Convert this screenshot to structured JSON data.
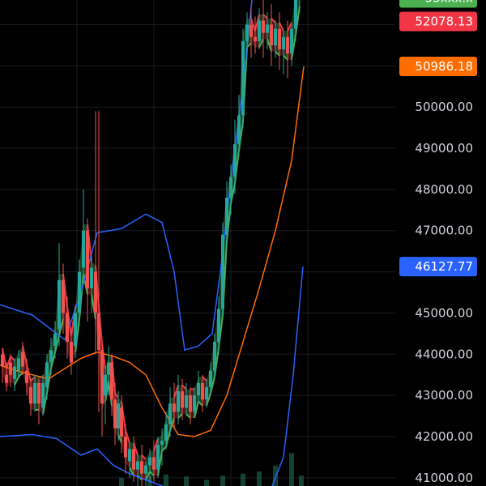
{
  "chart_data": {
    "type": "candlestick",
    "ylim": [
      40800,
      52600
    ],
    "y_ticks": [
      "50000.00",
      "49000.00",
      "48000.00",
      "47000.00",
      "45000.00",
      "44000.00",
      "43000.00",
      "42000.00",
      "41000.00"
    ],
    "y_tick_values": [
      50000,
      49000,
      48000,
      47000,
      45000,
      44000,
      43000,
      42000,
      41000
    ],
    "price_labels": [
      {
        "text": "53xxx.x",
        "value": 52650,
        "color": "#4caf50"
      },
      {
        "text": "52078.13",
        "value": 52078.13,
        "color": "#f23645"
      },
      {
        "text": "50986.18",
        "value": 50986.18,
        "color": "#ff6d00"
      },
      {
        "text": "46127.77",
        "value": 46127.77,
        "color": "#2962ff"
      }
    ],
    "colors": {
      "up": "#26a69a",
      "down": "#ef5350",
      "trail_up": "#4caf50",
      "trail_down": "#f23645",
      "ma": "#ff6d00",
      "band": "#2962ff",
      "grid": "#1a1d24",
      "background": "#000000"
    },
    "series": {
      "ma": [
        [
          -10,
          43800
        ],
        [
          20,
          43600
        ],
        [
          60,
          43400
        ],
        [
          100,
          43900
        ],
        [
          120,
          44050
        ],
        [
          140,
          43950
        ],
        [
          160,
          43800
        ],
        [
          180,
          43500
        ],
        [
          200,
          42700
        ],
        [
          220,
          42050
        ],
        [
          240,
          42000
        ],
        [
          260,
          42150
        ],
        [
          280,
          43000
        ],
        [
          300,
          44300
        ],
        [
          320,
          45600
        ],
        [
          340,
          47000
        ],
        [
          360,
          48700
        ],
        [
          375,
          50986.18
        ]
      ],
      "upper_band": [
        [
          0,
          45200
        ],
        [
          40,
          44950
        ],
        [
          80,
          44350
        ],
        [
          100,
          45500
        ],
        [
          120,
          46950
        ],
        [
          150,
          47050
        ],
        [
          180,
          47400
        ],
        [
          200,
          47200
        ],
        [
          215,
          46000
        ],
        [
          228,
          44100
        ],
        [
          245,
          44200
        ],
        [
          262,
          44500
        ],
        [
          272,
          46000
        ],
        [
          285,
          48200
        ],
        [
          300,
          50500
        ],
        [
          312,
          52800
        ]
      ],
      "lower_band": [
        [
          0,
          42000
        ],
        [
          40,
          42050
        ],
        [
          70,
          41950
        ],
        [
          100,
          41550
        ],
        [
          120,
          41700
        ],
        [
          140,
          41300
        ],
        [
          160,
          41100
        ],
        [
          180,
          40950
        ],
        [
          200,
          40800
        ],
        [
          300,
          40300
        ],
        [
          330,
          40500
        ],
        [
          350,
          41500
        ],
        [
          362,
          43500
        ],
        [
          374,
          46127.77
        ]
      ]
    },
    "candles": [
      [
        3,
        44000,
        44100,
        43700,
        43300
      ],
      [
        8,
        43500,
        43800,
        43300,
        43100
      ],
      [
        13,
        43800,
        44000,
        43500,
        43200
      ],
      [
        18,
        43400,
        43900,
        43700,
        43100
      ],
      [
        23,
        43600,
        44100,
        43900,
        43400
      ],
      [
        28,
        44050,
        44300,
        43700,
        43500
      ],
      [
        33,
        43600,
        43900,
        43300,
        43000
      ],
      [
        38,
        43200,
        43400,
        42800,
        42500
      ],
      [
        43,
        42800,
        43500,
        43300,
        42600
      ],
      [
        48,
        43300,
        43400,
        42800,
        42300
      ],
      [
        53,
        42700,
        43500,
        43300,
        42500
      ],
      [
        58,
        43200,
        44000,
        43800,
        42900
      ],
      [
        63,
        43800,
        44400,
        44100,
        43500
      ],
      [
        68,
        44200,
        44800,
        44500,
        43900
      ],
      [
        73,
        44600,
        46700,
        45800,
        44200
      ],
      [
        78,
        45800,
        46200,
        45000,
        44500
      ],
      [
        83,
        45000,
        45400,
        44300,
        43900
      ],
      [
        88,
        44300,
        44600,
        43800,
        43500
      ],
      [
        93,
        44200,
        45200,
        45000,
        43900
      ],
      [
        98,
        45000,
        46300,
        46000,
        44700
      ],
      [
        103,
        46100,
        48000,
        47000,
        45800
      ],
      [
        108,
        47000,
        47300,
        45600,
        44800
      ],
      [
        113,
        45600,
        46400,
        46100,
        45000
      ],
      [
        118,
        46000,
        49900,
        45000,
        44000
      ],
      [
        122,
        45000,
        49900,
        44100,
        42600
      ],
      [
        126,
        44100,
        44200,
        42800,
        42000
      ],
      [
        130,
        43000,
        43700,
        43500,
        42300
      ],
      [
        134,
        43500,
        44200,
        43800,
        43000
      ],
      [
        138,
        43800,
        44000,
        42900,
        42500
      ],
      [
        142,
        42900,
        43300,
        42200,
        41800
      ],
      [
        146,
        42200,
        43100,
        42800,
        41900
      ],
      [
        150,
        42700,
        43000,
        42000,
        41600
      ],
      [
        155,
        42000,
        42300,
        41500,
        41100
      ],
      [
        160,
        41400,
        41900,
        41700,
        41000
      ],
      [
        165,
        41700,
        42000,
        41200,
        40900
      ],
      [
        170,
        41200,
        41600,
        41400,
        40800
      ],
      [
        175,
        41400,
        41800,
        41100,
        40700
      ],
      [
        180,
        41100,
        41400,
        41300,
        40800
      ],
      [
        185,
        41300,
        41700,
        41500,
        40900
      ],
      [
        190,
        41500,
        41900,
        41200,
        40900
      ],
      [
        195,
        41200,
        42000,
        41800,
        41000
      ],
      [
        200,
        41800,
        42200,
        41900,
        41300
      ],
      [
        205,
        41900,
        42600,
        42300,
        41700
      ],
      [
        210,
        42300,
        43200,
        42800,
        42000
      ],
      [
        215,
        42800,
        43300,
        42600,
        42200
      ],
      [
        220,
        42600,
        43500,
        43100,
        42300
      ],
      [
        225,
        43100,
        43400,
        42700,
        42400
      ],
      [
        230,
        42700,
        43300,
        43000,
        42500
      ],
      [
        235,
        43000,
        43200,
        42600,
        42300
      ],
      [
        240,
        42600,
        43200,
        43000,
        42500
      ],
      [
        245,
        43000,
        43600,
        43300,
        42800
      ],
      [
        250,
        43300,
        43500,
        42900,
        42600
      ],
      [
        255,
        42900,
        43400,
        43200,
        42700
      ],
      [
        260,
        43200,
        43800,
        43600,
        43000
      ],
      [
        265,
        43600,
        44500,
        44300,
        43400
      ],
      [
        270,
        44300,
        45400,
        45100,
        44000
      ],
      [
        275,
        45100,
        47200,
        46900,
        44900
      ],
      [
        280,
        46900,
        48200,
        47800,
        46600
      ],
      [
        285,
        47800,
        48600,
        48300,
        47400
      ],
      [
        290,
        48300,
        49700,
        49100,
        47900
      ],
      [
        295,
        49100,
        50300,
        49800,
        48800
      ],
      [
        300,
        49800,
        51900,
        51600,
        49500
      ],
      [
        305,
        51600,
        52300,
        52000,
        51200
      ],
      [
        310,
        52000,
        52400,
        51700,
        51200
      ],
      [
        315,
        51700,
        52200,
        51600,
        51300
      ],
      [
        320,
        51600,
        52400,
        52100,
        51400
      ],
      [
        325,
        52100,
        52600,
        51800,
        51200
      ],
      [
        330,
        51800,
        52300,
        52000,
        51400
      ],
      [
        335,
        52000,
        52500,
        51500,
        51000
      ],
      [
        340,
        51500,
        52100,
        51900,
        51200
      ],
      [
        345,
        51900,
        52300,
        51400,
        50900
      ],
      [
        350,
        51400,
        51900,
        51700,
        50800
      ],
      [
        355,
        51700,
        52100,
        51300,
        50700
      ],
      [
        360,
        51300,
        52000,
        51900,
        51000
      ],
      [
        365,
        51900,
        52700,
        52600,
        51600
      ],
      [
        370,
        52600,
        52900,
        52900,
        52300
      ]
    ],
    "volumes": [
      [
        122,
        40000
      ],
      [
        150,
        41000
      ],
      [
        185,
        41050
      ],
      [
        205,
        41080
      ],
      [
        230,
        41030
      ],
      [
        255,
        40950
      ],
      [
        275,
        41050
      ],
      [
        300,
        41100
      ],
      [
        320,
        41150
      ],
      [
        340,
        41300
      ],
      [
        360,
        41600
      ],
      [
        372,
        41050
      ]
    ]
  }
}
